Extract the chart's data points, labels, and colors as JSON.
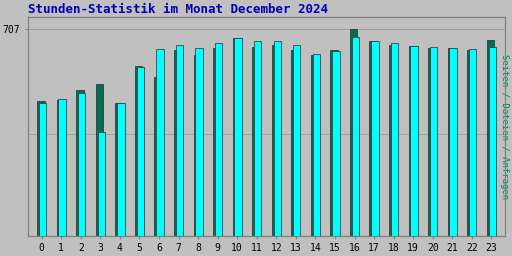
{
  "title": "Stunden-Statistik im Monat December 2024",
  "ylabel": "Seiten / Dateien / Anfragen",
  "ytick_label": "707",
  "hours": [
    0,
    1,
    2,
    3,
    4,
    5,
    6,
    7,
    8,
    9,
    10,
    11,
    12,
    13,
    14,
    15,
    16,
    17,
    18,
    19,
    20,
    21,
    22,
    23
  ],
  "bar_width": 0.38,
  "background_color": "#c0c0c0",
  "plot_bg_color": "#c0c0c0",
  "cyan_values": [
    455,
    468,
    490,
    355,
    455,
    580,
    640,
    655,
    645,
    660,
    678,
    668,
    668,
    655,
    622,
    632,
    680,
    668,
    660,
    650,
    648,
    645,
    640,
    648
  ],
  "green_values": [
    460,
    465,
    500,
    520,
    455,
    582,
    545,
    638,
    618,
    642,
    678,
    648,
    655,
    635,
    618,
    635,
    707,
    668,
    655,
    652,
    645,
    645,
    638,
    672
  ],
  "cyan_color": "#00FFFF",
  "blue_color": "#0044AA",
  "green_color": "#007055",
  "title_color": "#0000BB",
  "ylabel_color": "#008060",
  "axis_label_color": "#000000",
  "grid_color": "#999999",
  "border_color": "#808080",
  "ymax": 750,
  "ymin": 0,
  "hline1": 707,
  "hline2": 350
}
